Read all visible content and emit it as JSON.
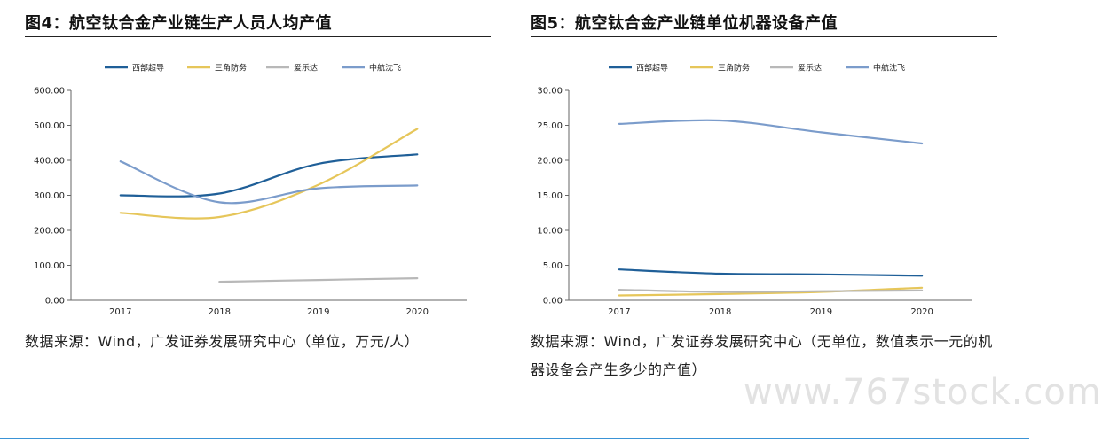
{
  "left": {
    "title": "图4：航空钛合金产业链生产人员人均产值",
    "source": "数据来源：Wind，广发证券发展研究中心（单位，万元/人）"
  },
  "right": {
    "title": "图5：航空钛合金产业链单位机器设备产值",
    "source": "数据来源：Wind，广发证券发展研究中心（无单位，数值表示一元的机器设备会产生多少的产值）"
  },
  "watermark": "www.767stock.com",
  "chart_data": [
    {
      "type": "line",
      "title": "",
      "xlabel": "",
      "ylabel": "",
      "categories": [
        "2017",
        "2018",
        "2019",
        "2020"
      ],
      "ylim": [
        0,
        600
      ],
      "yticks": [
        "0.00",
        "100.00",
        "200.00",
        "300.00",
        "400.00",
        "500.00",
        "600.00"
      ],
      "grid": false,
      "legend": "top",
      "series": [
        {
          "name": "西部超导",
          "color": "#1f5f98",
          "values": [
            300,
            305,
            390,
            417
          ]
        },
        {
          "name": "三角防务",
          "color": "#e6c65a",
          "values": [
            250,
            238,
            330,
            490
          ]
        },
        {
          "name": "爱乐达",
          "color": "#b8b8b8",
          "values": [
            null,
            53,
            58,
            63
          ]
        },
        {
          "name": "中航沈飞",
          "color": "#7b9ccb",
          "values": [
            397,
            280,
            320,
            328
          ]
        }
      ]
    },
    {
      "type": "line",
      "title": "",
      "xlabel": "",
      "ylabel": "",
      "categories": [
        "2017",
        "2018",
        "2019",
        "2020"
      ],
      "ylim": [
        0,
        30
      ],
      "yticks": [
        "0.00",
        "5.00",
        "10.00",
        "15.00",
        "20.00",
        "25.00",
        "30.00"
      ],
      "grid": false,
      "legend": "top",
      "series": [
        {
          "name": "西部超导",
          "color": "#1f5f98",
          "values": [
            4.4,
            3.8,
            3.7,
            3.5
          ]
        },
        {
          "name": "三角防务",
          "color": "#e6c65a",
          "values": [
            0.7,
            0.9,
            1.2,
            1.8
          ]
        },
        {
          "name": "爱乐达",
          "color": "#b8b8b8",
          "values": [
            1.5,
            1.2,
            1.3,
            1.4
          ]
        },
        {
          "name": "中航沈飞",
          "color": "#7b9ccb",
          "values": [
            25.2,
            25.7,
            24.0,
            22.4
          ]
        }
      ]
    }
  ]
}
